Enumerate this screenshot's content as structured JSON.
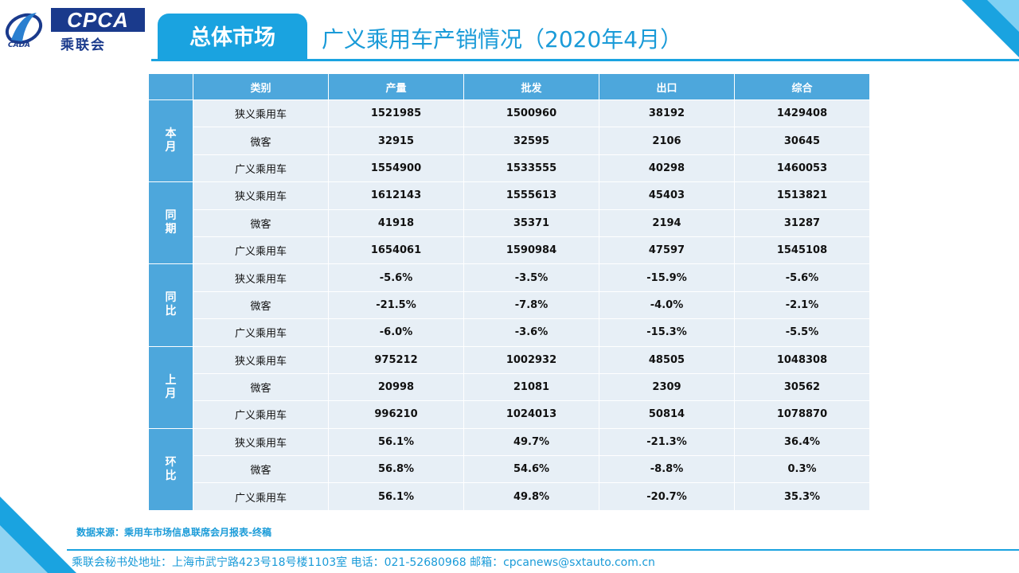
{
  "logo": {
    "brand": "CPCA",
    "name_cn": "乘联会",
    "sub": "CADA"
  },
  "header": {
    "tab_label": "总体市场",
    "title": "广义乘用车产销情况（2020年4月）"
  },
  "table": {
    "columns": [
      "",
      "类别",
      "产量",
      "批发",
      "出口",
      "综合"
    ],
    "groups": [
      {
        "label": "本月",
        "rows": [
          {
            "category": "狭义乘用车",
            "values": [
              "1521985",
              "1500960",
              "38192",
              "1429408"
            ]
          },
          {
            "category": "微客",
            "values": [
              "32915",
              "32595",
              "2106",
              "30645"
            ]
          },
          {
            "category": "广义乘用车",
            "values": [
              "1554900",
              "1533555",
              "40298",
              "1460053"
            ]
          }
        ]
      },
      {
        "label": "同期",
        "rows": [
          {
            "category": "狭义乘用车",
            "values": [
              "1612143",
              "1555613",
              "45403",
              "1513821"
            ]
          },
          {
            "category": "微客",
            "values": [
              "41918",
              "35371",
              "2194",
              "31287"
            ]
          },
          {
            "category": "广义乘用车",
            "values": [
              "1654061",
              "1590984",
              "47597",
              "1545108"
            ]
          }
        ]
      },
      {
        "label": "同比",
        "rows": [
          {
            "category": "狭义乘用车",
            "values": [
              "-5.6%",
              "-3.5%",
              "-15.9%",
              "-5.6%"
            ]
          },
          {
            "category": "微客",
            "values": [
              "-21.5%",
              "-7.8%",
              "-4.0%",
              "-2.1%"
            ]
          },
          {
            "category": "广义乘用车",
            "values": [
              "-6.0%",
              "-3.6%",
              "-15.3%",
              "-5.5%"
            ]
          }
        ]
      },
      {
        "label": "上月",
        "rows": [
          {
            "category": "狭义乘用车",
            "values": [
              "975212",
              "1002932",
              "48505",
              "1048308"
            ]
          },
          {
            "category": "微客",
            "values": [
              "20998",
              "21081",
              "2309",
              "30562"
            ]
          },
          {
            "category": "广义乘用车",
            "values": [
              "996210",
              "1024013",
              "50814",
              "1078870"
            ]
          }
        ]
      },
      {
        "label": "环比",
        "rows": [
          {
            "category": "狭义乘用车",
            "values": [
              "56.1%",
              "49.7%",
              "-21.3%",
              "36.4%"
            ]
          },
          {
            "category": "微客",
            "values": [
              "56.8%",
              "54.6%",
              "-8.8%",
              "0.3%"
            ]
          },
          {
            "category": "广义乘用车",
            "values": [
              "56.1%",
              "49.8%",
              "-20.7%",
              "35.3%"
            ]
          }
        ]
      }
    ]
  },
  "source": "数据来源：乘用车市场信息联席会月报表-终稿",
  "footer": "乘联会秘书处地址：上海市武宁路423号18号楼1103室  电话：021-52680968    邮箱：cpcanews@sxtauto.com.cn",
  "colors": {
    "accent": "#1aa3e0",
    "header_cell": "#4da7dc",
    "body_cell": "#e7eff6",
    "logo_navy": "#1a3a8c"
  }
}
